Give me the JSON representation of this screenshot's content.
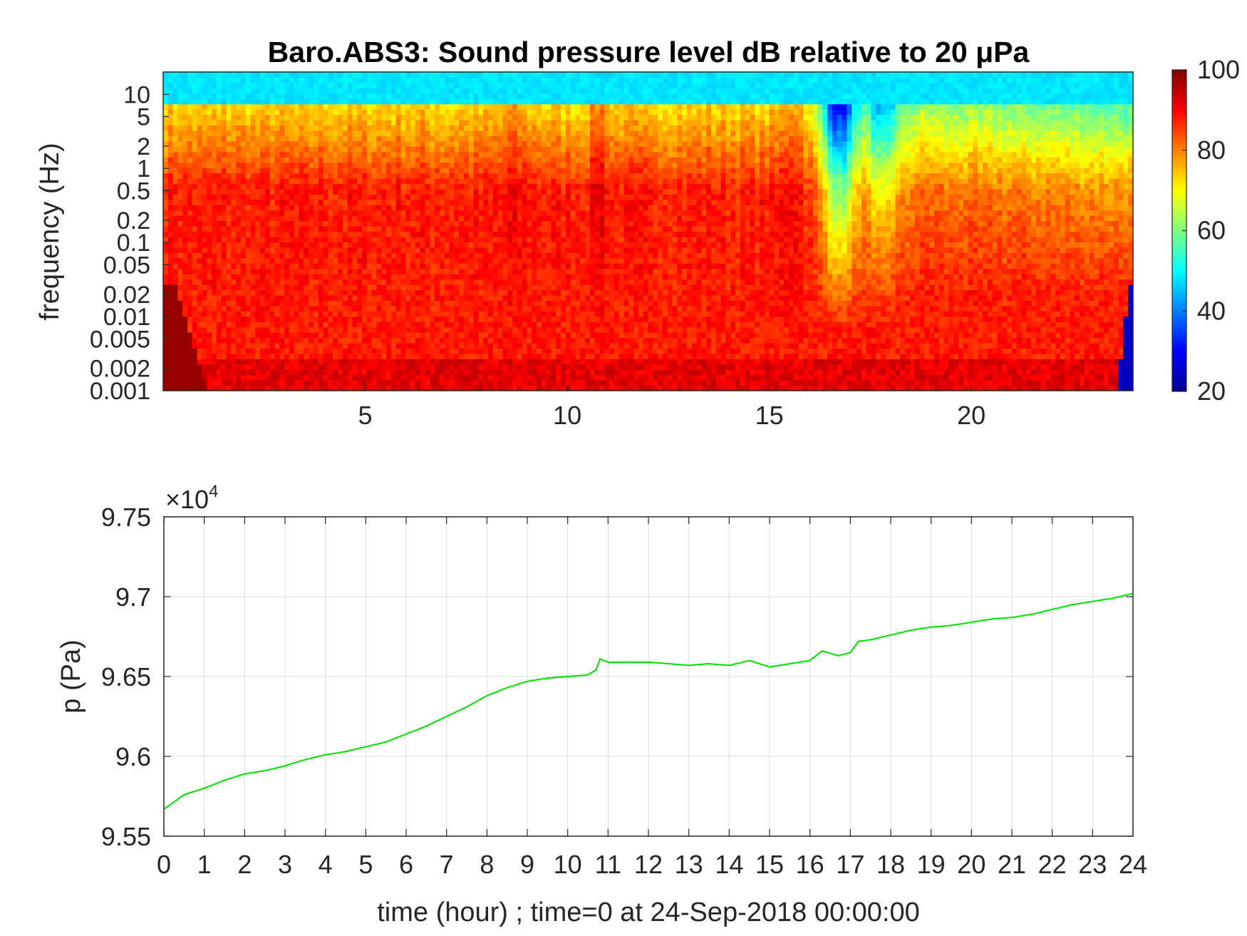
{
  "chart_data": [
    {
      "type": "heatmap",
      "title": "Baro.ABS3: Sound pressure level dB relative to 20 μPa",
      "ylabel": "frequency (Hz)",
      "xlabel": "",
      "xlim": [
        0,
        24
      ],
      "x_ticks": [
        5,
        10,
        15,
        20
      ],
      "x_tick_labels": [
        "5",
        "10",
        "15",
        "20"
      ],
      "y_scale": "log",
      "ylim": [
        0.001,
        20
      ],
      "y_ticks": [
        0.001,
        0.002,
        0.005,
        0.01,
        0.02,
        0.05,
        0.1,
        0.2,
        0.5,
        1,
        2,
        5,
        10
      ],
      "y_tick_labels": [
        "0.001",
        "0.002",
        "0.005",
        "0.01",
        "0.02",
        "0.05",
        "0.1",
        "0.2",
        "0.5",
        "1",
        "2",
        "5",
        "10"
      ],
      "colormap": "jet",
      "colorbar": {
        "range": [
          20,
          100
        ],
        "ticks": [
          20,
          40,
          60,
          80,
          100
        ],
        "tick_labels": [
          "20",
          "40",
          "60",
          "80",
          "100"
        ]
      },
      "description_values": {
        "high_frequency_background_dB": 50,
        "low_frequency_level_dB": 88,
        "quiet_band_hours": [
          16.5,
          17.0
        ],
        "peak_bands_hours": [
          10.8,
          15.5,
          17.2
        ]
      }
    },
    {
      "type": "line",
      "title": "",
      "xlabel": "time (hour) ; time=0 at 24-Sep-2018 00:00:00",
      "ylabel": "p (Pa)",
      "xlim": [
        0,
        24
      ],
      "ylim": [
        95500,
        97500
      ],
      "y_exponent_label": "×10",
      "y_exponent": "4",
      "x_ticks": [
        0,
        1,
        2,
        3,
        4,
        5,
        6,
        7,
        8,
        9,
        10,
        11,
        12,
        13,
        14,
        15,
        16,
        17,
        18,
        19,
        20,
        21,
        22,
        23,
        24
      ],
      "x_tick_labels": [
        "0",
        "1",
        "2",
        "3",
        "4",
        "5",
        "6",
        "7",
        "8",
        "9",
        "10",
        "11",
        "12",
        "13",
        "14",
        "15",
        "16",
        "17",
        "18",
        "19",
        "20",
        "21",
        "22",
        "23",
        "24"
      ],
      "y_ticks": [
        95500,
        96000,
        96500,
        97000,
        97500
      ],
      "y_tick_labels": [
        "9.55",
        "9.6",
        "9.65",
        "9.7",
        "9.75"
      ],
      "grid": true,
      "line_color": "#00e000",
      "series": [
        {
          "x": [
            0,
            0.5,
            1,
            1.5,
            2,
            2.5,
            3,
            3.5,
            4,
            4.5,
            5,
            5.5,
            6,
            6.5,
            7,
            7.5,
            8,
            8.5,
            9,
            9.5,
            10,
            10.5,
            10.7,
            10.8,
            11,
            11.5,
            12,
            12.5,
            13,
            13.5,
            14,
            14.5,
            15,
            15.5,
            16,
            16.3,
            16.7,
            17,
            17.2,
            17.5,
            18,
            18.5,
            19,
            19.5,
            20,
            20.5,
            21,
            21.5,
            22,
            22.5,
            23,
            23.5,
            24
          ],
          "y": [
            95670,
            95760,
            95800,
            95850,
            95890,
            95910,
            95940,
            95980,
            96010,
            96030,
            96060,
            96090,
            96140,
            96190,
            96250,
            96310,
            96380,
            96430,
            96470,
            96490,
            96500,
            96510,
            96540,
            96610,
            96590,
            96590,
            96590,
            96580,
            96570,
            96580,
            96570,
            96600,
            96560,
            96580,
            96600,
            96660,
            96630,
            96650,
            96720,
            96730,
            96760,
            96790,
            96810,
            96820,
            96840,
            96860,
            96870,
            96890,
            96920,
            96950,
            96970,
            96990,
            97020
          ]
        }
      ]
    }
  ]
}
